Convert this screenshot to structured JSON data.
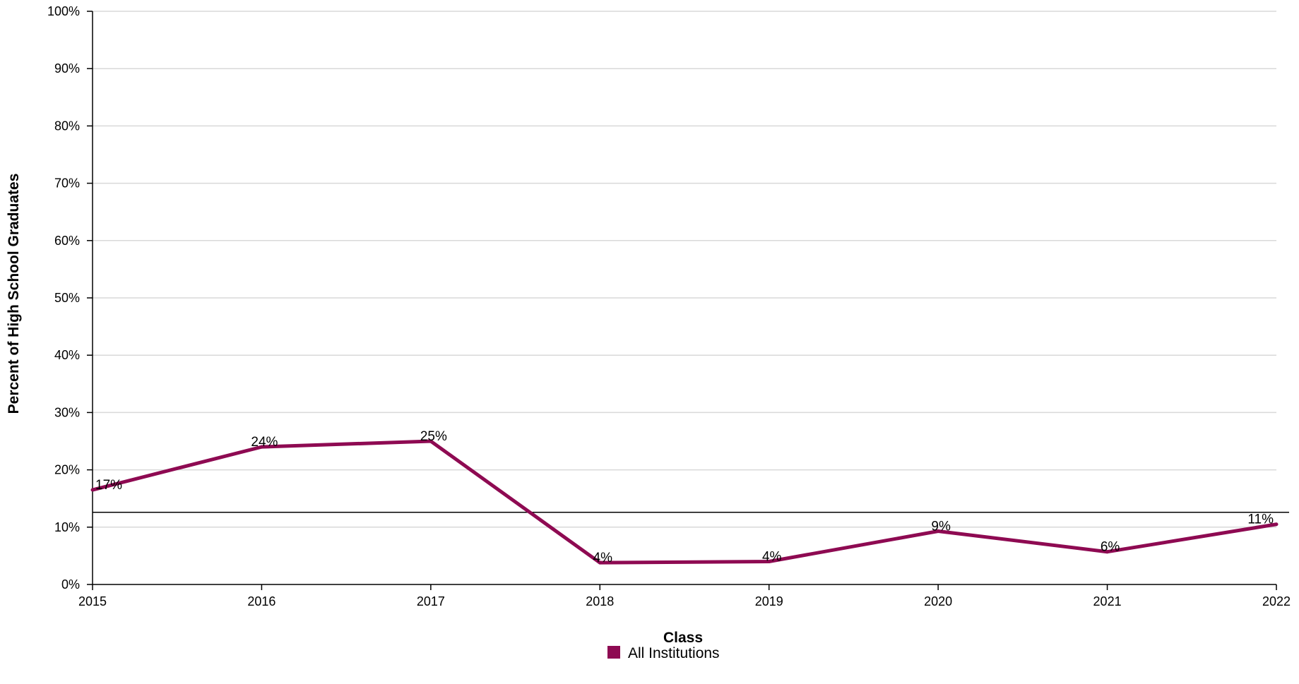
{
  "chart_data": {
    "type": "line",
    "title": "",
    "xlabel": "Class",
    "ylabel": "Percent of High School Graduates",
    "categories": [
      "2015",
      "2016",
      "2017",
      "2018",
      "2019",
      "2020",
      "2021",
      "2022"
    ],
    "series": [
      {
        "name": "All Institutions",
        "color": "#8e0a52",
        "values": [
          16.5,
          24.0,
          25.0,
          3.8,
          4.0,
          9.3,
          5.7,
          10.5
        ],
        "labels": [
          "17%",
          "24%",
          "25%",
          "4%",
          "4%",
          "9%",
          "6%",
          "11%"
        ]
      }
    ],
    "reference_line": {
      "value": 12.6,
      "color": "#000000"
    },
    "ylim": [
      0,
      100
    ],
    "yticks": [
      0,
      10,
      20,
      30,
      40,
      50,
      60,
      70,
      80,
      90,
      100
    ],
    "ytick_labels": [
      "0%",
      "10%",
      "20%",
      "30%",
      "40%",
      "50%",
      "60%",
      "70%",
      "80%",
      "90%",
      "100%"
    ],
    "grid": true,
    "legend_position": "bottom-center"
  }
}
